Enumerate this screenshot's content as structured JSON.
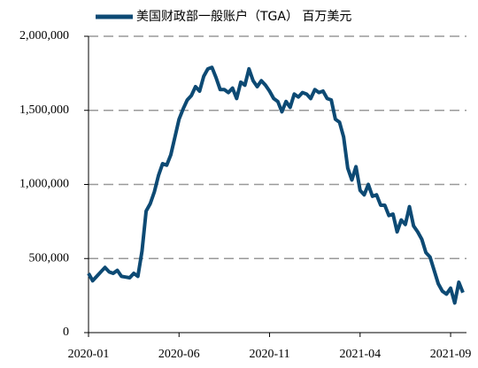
{
  "chart_data": {
    "type": "line",
    "categories": [
      "2020-01",
      null,
      null,
      null,
      null,
      null,
      null,
      null,
      null,
      null,
      null,
      null,
      null,
      null,
      null,
      null,
      null,
      null,
      null,
      null,
      null,
      null,
      "2020-06",
      null,
      null,
      null,
      null,
      null,
      null,
      null,
      null,
      null,
      null,
      null,
      null,
      null,
      null,
      null,
      null,
      null,
      null,
      null,
      null,
      null,
      "2020-11",
      null,
      null,
      null,
      null,
      null,
      null,
      null,
      null,
      null,
      null,
      null,
      null,
      null,
      null,
      null,
      null,
      null,
      null,
      null,
      null,
      null,
      "2021-04",
      null,
      null,
      null,
      null,
      null,
      null,
      null,
      null,
      null,
      null,
      null,
      null,
      null,
      null,
      null,
      null,
      null,
      null,
      null,
      null,
      null,
      "2021-09",
      null,
      null,
      null
    ],
    "series": [
      {
        "name": "美国财政部一般账户（TGA） 百万美元",
        "color": "#0d4a74",
        "values": [
          400000,
          350000,
          380000,
          410000,
          440000,
          410000,
          400000,
          420000,
          380000,
          375000,
          370000,
          400000,
          380000,
          550000,
          820000,
          870000,
          950000,
          1060000,
          1140000,
          1130000,
          1200000,
          1320000,
          1440000,
          1510000,
          1570000,
          1600000,
          1660000,
          1630000,
          1730000,
          1780000,
          1790000,
          1720000,
          1640000,
          1640000,
          1620000,
          1650000,
          1580000,
          1690000,
          1670000,
          1780000,
          1700000,
          1660000,
          1700000,
          1670000,
          1630000,
          1580000,
          1560000,
          1490000,
          1560000,
          1520000,
          1610000,
          1590000,
          1620000,
          1610000,
          1580000,
          1640000,
          1620000,
          1630000,
          1580000,
          1570000,
          1440000,
          1420000,
          1320000,
          1110000,
          1030000,
          1120000,
          960000,
          930000,
          1000000,
          920000,
          930000,
          860000,
          860000,
          790000,
          800000,
          680000,
          760000,
          730000,
          850000,
          720000,
          680000,
          630000,
          540000,
          510000,
          420000,
          330000,
          280000,
          260000,
          300000,
          200000,
          340000,
          270000
        ]
      }
    ],
    "ylim": [
      0,
      2000000
    ],
    "yticks": [
      0,
      {
        "value": 500000,
        "label": "500,000"
      },
      {
        "value": 1000000,
        "label": "1,000,000"
      },
      {
        "value": 1500000,
        "label": "1,500,000"
      },
      {
        "value": 2000000,
        "label": "2,000,000"
      }
    ],
    "grid": true
  }
}
